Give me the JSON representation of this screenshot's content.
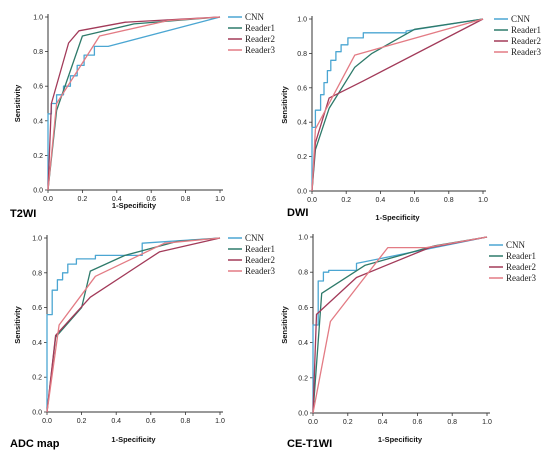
{
  "colors": {
    "CNN": "#4ba6d2",
    "Reader1": "#2e7a6a",
    "Reader2": "#a23a59",
    "Reader3": "#e37b84",
    "axis": "#333333"
  },
  "chart_data": [
    {
      "type": "line",
      "panel_label": "T2WI",
      "xlabel": "1-Specificity",
      "ylabel": "Sensitivity",
      "xlim": [
        0,
        1
      ],
      "ylim": [
        0,
        1
      ],
      "xticks": [
        "0.0",
        "0.2",
        "0.4",
        "0.6",
        "0.8",
        "1.0"
      ],
      "yticks": [
        "0.0",
        "0.2",
        "0.4",
        "0.6",
        "0.8",
        "1.0"
      ],
      "grid": false,
      "legend_position": "top-right",
      "series": [
        {
          "name": "CNN",
          "x": [
            0,
            0,
            0.02,
            0.02,
            0.05,
            0.05,
            0.09,
            0.09,
            0.13,
            0.13,
            0.17,
            0.17,
            0.21,
            0.21,
            0.27,
            0.27,
            0.35,
            1.0
          ],
          "y": [
            0,
            0.44,
            0.44,
            0.5,
            0.5,
            0.55,
            0.55,
            0.6,
            0.6,
            0.66,
            0.66,
            0.72,
            0.72,
            0.78,
            0.78,
            0.83,
            0.83,
            1.0
          ]
        },
        {
          "name": "Reader1",
          "x": [
            0,
            0.05,
            0.2,
            0.5,
            1.0
          ],
          "y": [
            0,
            0.46,
            0.89,
            0.96,
            1.0
          ]
        },
        {
          "name": "Reader2",
          "x": [
            0,
            0.02,
            0.12,
            0.18,
            0.45,
            1.0
          ],
          "y": [
            0,
            0.5,
            0.85,
            0.92,
            0.97,
            1.0
          ]
        },
        {
          "name": "Reader3",
          "x": [
            0,
            0.05,
            0.3,
            0.7,
            1.0
          ],
          "y": [
            0,
            0.5,
            0.89,
            0.98,
            1.0
          ]
        }
      ]
    },
    {
      "type": "line",
      "panel_label": "DWI",
      "xlabel": "1-Specificity",
      "ylabel": "Sensitivity",
      "xlim": [
        0,
        1
      ],
      "ylim": [
        0,
        1
      ],
      "xticks": [
        "0.0",
        "0.2",
        "0.4",
        "0.6",
        "0.8",
        "1.0"
      ],
      "yticks": [
        "0.0",
        "0.2",
        "0.4",
        "0.6",
        "0.8",
        "1.0"
      ],
      "grid": false,
      "legend_position": "top-right",
      "series": [
        {
          "name": "CNN",
          "x": [
            0,
            0,
            0.02,
            0.02,
            0.05,
            0.05,
            0.07,
            0.07,
            0.09,
            0.09,
            0.11,
            0.11,
            0.14,
            0.14,
            0.17,
            0.17,
            0.21,
            0.21,
            0.3,
            0.3,
            0.55,
            0.55,
            1.0
          ],
          "y": [
            0,
            0.37,
            0.37,
            0.47,
            0.47,
            0.56,
            0.56,
            0.63,
            0.63,
            0.7,
            0.7,
            0.76,
            0.76,
            0.81,
            0.81,
            0.85,
            0.85,
            0.89,
            0.89,
            0.92,
            0.92,
            0.93,
            1.0
          ]
        },
        {
          "name": "Reader1",
          "x": [
            0,
            0.02,
            0.1,
            0.25,
            0.35,
            0.6,
            1.0
          ],
          "y": [
            0,
            0.24,
            0.48,
            0.72,
            0.8,
            0.94,
            1.0
          ]
        },
        {
          "name": "Reader2",
          "x": [
            0,
            0.02,
            0.1,
            0.3,
            1.0
          ],
          "y": [
            0,
            0.28,
            0.54,
            0.64,
            1.0
          ]
        },
        {
          "name": "Reader3",
          "x": [
            0,
            0.02,
            0.25,
            1.0
          ],
          "y": [
            0,
            0.36,
            0.79,
            1.0
          ]
        }
      ]
    },
    {
      "type": "line",
      "panel_label": "ADC map",
      "xlabel": "1-Specificity",
      "ylabel": "Sensitivity",
      "xlim": [
        0,
        1
      ],
      "ylim": [
        0,
        1
      ],
      "xticks": [
        "0.0",
        "0.2",
        "0.4",
        "0.6",
        "0.8",
        "1.0"
      ],
      "yticks": [
        "0.0",
        "0.2",
        "0.4",
        "0.6",
        "0.8",
        "1.0"
      ],
      "grid": false,
      "legend_position": "top-right",
      "series": [
        {
          "name": "CNN",
          "x": [
            0,
            0,
            0.03,
            0.03,
            0.06,
            0.06,
            0.09,
            0.09,
            0.12,
            0.12,
            0.17,
            0.17,
            0.28,
            0.28,
            0.55,
            0.55,
            1.0
          ],
          "y": [
            0,
            0.56,
            0.56,
            0.7,
            0.7,
            0.76,
            0.76,
            0.8,
            0.8,
            0.85,
            0.85,
            0.88,
            0.88,
            0.9,
            0.9,
            0.97,
            1.0
          ]
        },
        {
          "name": "Reader1",
          "x": [
            0,
            0.05,
            0.2,
            0.25,
            0.45,
            0.75,
            1.0
          ],
          "y": [
            0,
            0.43,
            0.6,
            0.81,
            0.9,
            0.98,
            1.0
          ]
        },
        {
          "name": "Reader2",
          "x": [
            0,
            0.05,
            0.25,
            0.65,
            1.0
          ],
          "y": [
            0,
            0.44,
            0.66,
            0.92,
            1.0
          ]
        },
        {
          "name": "Reader3",
          "x": [
            0,
            0.07,
            0.28,
            0.68,
            1.0
          ],
          "y": [
            0,
            0.5,
            0.78,
            0.97,
            1.0
          ]
        }
      ]
    },
    {
      "type": "line",
      "panel_label": "CE-T1WI",
      "xlabel": "1-Specificity",
      "ylabel": "Sensitivity",
      "xlim": [
        0,
        1
      ],
      "ylim": [
        0,
        1
      ],
      "xticks": [
        "0.0",
        "0.2",
        "0.4",
        "0.6",
        "0.8",
        "1.0"
      ],
      "yticks": [
        "0.0",
        "0.2",
        "0.4",
        "0.6",
        "0.8",
        "1.0"
      ],
      "grid": false,
      "legend_position": "top-right",
      "series": [
        {
          "name": "CNN",
          "x": [
            0,
            0,
            0.03,
            0.03,
            0.06,
            0.06,
            0.09,
            0.09,
            0.25,
            0.25,
            1.0
          ],
          "y": [
            0,
            0.5,
            0.5,
            0.75,
            0.75,
            0.8,
            0.8,
            0.81,
            0.81,
            0.85,
            1.0
          ]
        },
        {
          "name": "Reader1",
          "x": [
            0,
            0.05,
            0.3,
            0.7,
            1.0
          ],
          "y": [
            0,
            0.68,
            0.84,
            0.95,
            1.0
          ]
        },
        {
          "name": "Reader2",
          "x": [
            0,
            0.02,
            0.25,
            0.67,
            1.0
          ],
          "y": [
            0,
            0.56,
            0.77,
            0.94,
            1.0
          ]
        },
        {
          "name": "Reader3",
          "x": [
            0,
            0.1,
            0.43,
            0.65,
            1.0
          ],
          "y": [
            0,
            0.52,
            0.94,
            0.94,
            1.0
          ]
        }
      ]
    }
  ]
}
